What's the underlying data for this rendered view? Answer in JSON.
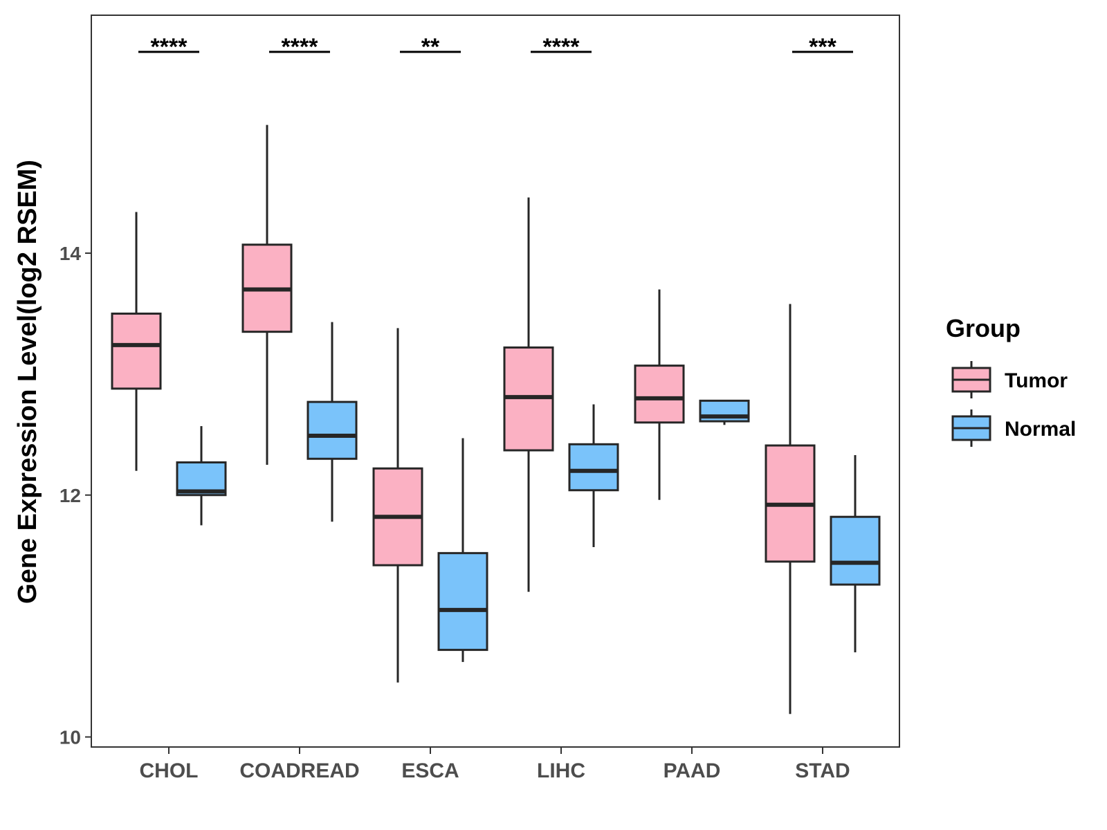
{
  "chart_data": {
    "type": "boxplot",
    "title": "",
    "xlabel": "",
    "ylabel": "Gene Expression Level(log2 RSEM)",
    "ylim": [
      9.9,
      16.0
    ],
    "yticks": [
      10,
      12,
      14
    ],
    "categories": [
      "CHOL",
      "COADREAD",
      "ESCA",
      "LIHC",
      "PAAD",
      "STAD"
    ],
    "legend": {
      "title": "Group",
      "position": "right",
      "entries": [
        "Tumor",
        "Normal"
      ]
    },
    "series": [
      {
        "name": "Tumor",
        "color": "#FBB1C3",
        "boxes": [
          {
            "min": 12.2,
            "q1": 12.88,
            "median": 13.24,
            "q3": 13.5,
            "max": 14.34
          },
          {
            "min": 12.25,
            "q1": 13.35,
            "median": 13.7,
            "q3": 14.07,
            "max": 15.06
          },
          {
            "min": 10.45,
            "q1": 11.42,
            "median": 11.82,
            "q3": 12.22,
            "max": 13.38
          },
          {
            "min": 11.2,
            "q1": 12.37,
            "median": 12.81,
            "q3": 13.22,
            "max": 14.46
          },
          {
            "min": 11.96,
            "q1": 12.6,
            "median": 12.8,
            "q3": 13.07,
            "max": 13.7
          },
          {
            "min": 10.19,
            "q1": 11.45,
            "median": 11.92,
            "q3": 12.41,
            "max": 13.58
          }
        ]
      },
      {
        "name": "Normal",
        "color": "#7AC3FA",
        "boxes": [
          {
            "min": 11.75,
            "q1": 12.0,
            "median": 12.03,
            "q3": 12.27,
            "max": 12.57
          },
          {
            "min": 11.78,
            "q1": 12.3,
            "median": 12.49,
            "q3": 12.77,
            "max": 13.43
          },
          {
            "min": 10.62,
            "q1": 10.72,
            "median": 11.05,
            "q3": 11.52,
            "max": 12.47
          },
          {
            "min": 11.57,
            "q1": 12.04,
            "median": 12.2,
            "q3": 12.42,
            "max": 12.75
          },
          {
            "min": 12.58,
            "q1": 12.61,
            "median": 12.65,
            "q3": 12.78,
            "max": 12.78
          },
          {
            "min": 10.7,
            "q1": 11.26,
            "median": 11.44,
            "q3": 11.82,
            "max": 12.33
          }
        ]
      }
    ],
    "significance": [
      "****",
      "****",
      "**",
      "****",
      "",
      "***"
    ]
  }
}
